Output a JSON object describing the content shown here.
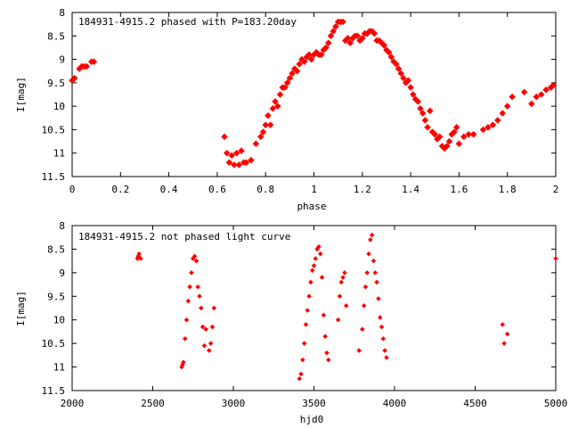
{
  "chart_data": [
    {
      "type": "scatter",
      "title": "184931-4915.2 phased with P=183.20day",
      "xlabel": "phase",
      "ylabel": "I[mag]",
      "xlim": [
        0,
        2
      ],
      "ylim": [
        11.5,
        8
      ],
      "y_inverted": true,
      "xticks": [
        "0",
        "0.2",
        "0.4",
        "0.6",
        "0.8",
        "1",
        "1.2",
        "1.4",
        "1.6",
        "1.8",
        "2"
      ],
      "yticks": [
        "8",
        "8.5",
        "9",
        "9.5",
        "10",
        "10.5",
        "11",
        "11.5"
      ],
      "marker_color": "#ff0000",
      "grid": false,
      "series": [
        {
          "x": [
            0.0,
            0.01,
            0.03,
            0.04,
            0.05,
            0.06,
            0.08,
            0.09,
            0.63,
            0.64,
            0.65,
            0.66,
            0.67,
            0.68,
            0.69,
            0.7,
            0.71,
            0.72,
            0.74,
            0.76,
            0.78,
            0.79,
            0.8,
            0.81,
            0.82,
            0.83,
            0.84,
            0.85,
            0.86,
            0.87,
            0.88,
            0.89,
            0.9,
            0.91,
            0.92,
            0.93,
            0.94,
            0.95,
            0.96,
            0.97,
            0.98,
            0.99,
            1.0,
            1.01,
            1.02,
            1.03,
            1.04,
            1.05,
            1.06,
            1.07,
            1.08,
            1.09,
            1.1,
            1.11,
            1.12,
            1.13,
            1.14,
            1.15,
            1.16,
            1.17,
            1.18,
            1.19,
            1.2,
            1.21,
            1.22,
            1.23,
            1.24,
            1.25,
            1.26,
            1.27,
            1.28,
            1.29,
            1.3,
            1.31,
            1.32,
            1.33,
            1.34,
            1.35,
            1.36,
            1.37,
            1.38,
            1.39,
            1.4,
            1.41,
            1.42,
            1.43,
            1.44,
            1.45,
            1.46,
            1.47,
            1.48,
            1.49,
            1.5,
            1.51,
            1.52,
            1.53,
            1.54,
            1.55,
            1.56,
            1.57,
            1.58,
            1.59,
            1.6,
            1.62,
            1.64,
            1.66,
            1.7,
            1.72,
            1.74,
            1.76,
            1.78,
            1.8,
            1.82,
            1.87,
            1.9,
            1.92,
            1.94,
            1.96,
            1.98,
            1.99
          ],
          "y": [
            9.45,
            9.4,
            9.2,
            9.15,
            9.15,
            9.15,
            9.05,
            9.05,
            10.65,
            11.0,
            11.2,
            11.05,
            11.25,
            11.0,
            11.25,
            10.95,
            11.2,
            11.2,
            11.15,
            10.8,
            10.65,
            10.55,
            10.4,
            10.2,
            10.4,
            10.05,
            9.9,
            10.0,
            9.75,
            9.6,
            9.6,
            9.5,
            9.4,
            9.3,
            9.2,
            9.25,
            9.1,
            9.0,
            9.05,
            8.95,
            8.9,
            9.0,
            8.9,
            8.85,
            8.9,
            8.9,
            8.8,
            8.75,
            8.65,
            8.5,
            8.4,
            8.3,
            8.2,
            8.2,
            8.2,
            8.6,
            8.55,
            8.65,
            8.55,
            8.5,
            8.5,
            8.6,
            8.55,
            8.45,
            8.45,
            8.4,
            8.4,
            8.45,
            8.6,
            8.6,
            8.65,
            8.7,
            8.8,
            8.85,
            8.95,
            9.05,
            9.1,
            9.2,
            9.3,
            9.4,
            9.5,
            9.45,
            9.6,
            9.75,
            9.85,
            9.9,
            10.05,
            10.15,
            10.3,
            10.45,
            10.1,
            10.55,
            10.6,
            10.7,
            10.65,
            10.85,
            10.9,
            10.85,
            10.75,
            10.6,
            10.55,
            10.45,
            10.8,
            10.65,
            10.6,
            10.6,
            10.5,
            10.45,
            10.4,
            10.3,
            10.15,
            10.0,
            9.8,
            9.7,
            9.95,
            9.8,
            9.75,
            9.65,
            9.6,
            9.55
          ]
        }
      ]
    },
    {
      "type": "scatter",
      "title": "184931-4915.2 not phased light curve",
      "xlabel": "hjd0",
      "ylabel": "I[mag]",
      "xlim": [
        2000,
        5000
      ],
      "ylim": [
        11.5,
        8
      ],
      "y_inverted": true,
      "xticks": [
        "2000",
        "2500",
        "3000",
        "3500",
        "4000",
        "4500",
        "5000"
      ],
      "yticks": [
        "8",
        "8.5",
        "9",
        "9.5",
        "10",
        "10.5",
        "11",
        "11.5"
      ],
      "marker_color": "#ff0000",
      "grid": false,
      "series": [
        {
          "x": [
            2405,
            2410,
            2415,
            2425,
            2680,
            2685,
            2690,
            2700,
            2710,
            2720,
            2730,
            2740,
            2750,
            2760,
            2770,
            2780,
            2790,
            2800,
            2810,
            2820,
            2830,
            2850,
            2860,
            2870,
            2880,
            3410,
            3420,
            3430,
            3440,
            3450,
            3460,
            3470,
            3480,
            3490,
            3500,
            3510,
            3520,
            3530,
            3540,
            3550,
            3560,
            3570,
            3580,
            3590,
            3650,
            3660,
            3670,
            3680,
            3690,
            3700,
            3780,
            3800,
            3810,
            3820,
            3830,
            3840,
            3850,
            3860,
            3870,
            3880,
            3890,
            3900,
            3910,
            3920,
            3930,
            3940,
            3950,
            4670,
            4680,
            4700,
            5000
          ],
          "y": [
            8.7,
            8.65,
            8.6,
            8.7,
            11.0,
            10.95,
            10.9,
            10.4,
            10.0,
            9.6,
            9.3,
            9.0,
            8.7,
            8.65,
            8.75,
            9.3,
            9.5,
            9.75,
            10.15,
            10.55,
            10.2,
            10.65,
            10.5,
            10.15,
            9.75,
            11.25,
            11.15,
            10.85,
            10.5,
            10.1,
            9.8,
            9.5,
            9.2,
            8.95,
            8.85,
            8.7,
            8.5,
            8.45,
            8.6,
            9.1,
            9.9,
            10.35,
            10.7,
            10.85,
            10.0,
            9.5,
            9.2,
            9.1,
            9.0,
            9.7,
            10.65,
            10.2,
            9.7,
            9.3,
            9.0,
            8.6,
            8.3,
            8.2,
            8.75,
            9.0,
            9.2,
            9.55,
            9.95,
            10.15,
            10.4,
            10.65,
            10.8,
            10.1,
            10.5,
            10.3,
            8.7
          ]
        }
      ]
    }
  ]
}
